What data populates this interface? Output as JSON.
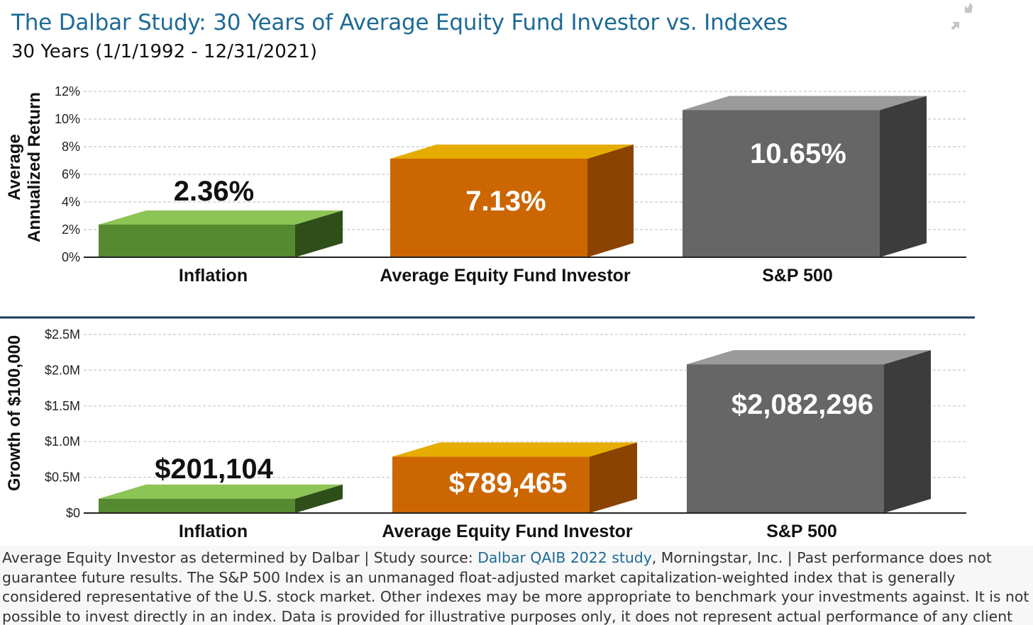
{
  "title": "The Dalbar Study: 30 Years of Average Equity Fund Investor vs. Indexes",
  "subtitle": "30 Years (1/1/1992 - 12/31/2021)",
  "collapse_icon": "collapse-arrows-icon",
  "colors": {
    "title": "#1d6a96",
    "divider": "#1b3a5c",
    "inflation": {
      "front": "#568a30",
      "top": "#8cc456",
      "side": "#2e4f1a"
    },
    "investor": {
      "front": "#cc6600",
      "top": "#e6ac00",
      "side": "#8a4300"
    },
    "sp500": {
      "front": "#666666",
      "top": "#9a9a9a",
      "side": "#3c3c3c"
    }
  },
  "chart_data": [
    {
      "type": "bar",
      "ylabel_lines": [
        "Average",
        "Annualized Return"
      ],
      "categories": [
        "Inflation",
        "Average Equity Fund Investor",
        "S&P 500"
      ],
      "values": [
        2.36,
        7.13,
        10.65
      ],
      "data_labels": [
        "2.36%",
        "7.13%",
        "10.65%"
      ],
      "ylim": [
        0,
        12
      ],
      "yticks": [
        0,
        2,
        4,
        6,
        8,
        10,
        12
      ],
      "ytick_labels": [
        "0%",
        "2%",
        "4%",
        "6%",
        "8%",
        "10%",
        "12%"
      ],
      "grid": true
    },
    {
      "type": "bar",
      "ylabel_lines": [
        "Growth of $100,000"
      ],
      "categories": [
        "Inflation",
        "Average Equity Fund Investor",
        "S&P 500"
      ],
      "values": [
        201104,
        789465,
        2082296
      ],
      "data_labels": [
        "$201,104",
        "$789,465",
        "$2,082,296"
      ],
      "ylim": [
        0,
        2500000
      ],
      "yticks": [
        0,
        500000,
        1000000,
        1500000,
        2000000,
        2500000
      ],
      "ytick_labels": [
        "$0",
        "$0.5M",
        "$1.0M",
        "$1.5M",
        "$2.0M",
        "$2.5M"
      ],
      "grid": true
    }
  ],
  "footer": {
    "text_before": "Average Equity Investor as determined by Dalbar | Study source: ",
    "link_text": "Dalbar QAIB 2022 study",
    "text_after": ", Morningstar, Inc. | Past performance does not",
    "lines": [
      "guarantee future results. The S&P 500 Index is an unmanaged float-adjusted market capitalization-weighted index that is generally",
      "considered representative of the U.S. stock market. Other indexes may be more appropriate to benchmark your investments against. It is not",
      "possible to invest directly in an index. Data is provided for illustrative purposes only, it does not represent actual performance of any client"
    ]
  }
}
